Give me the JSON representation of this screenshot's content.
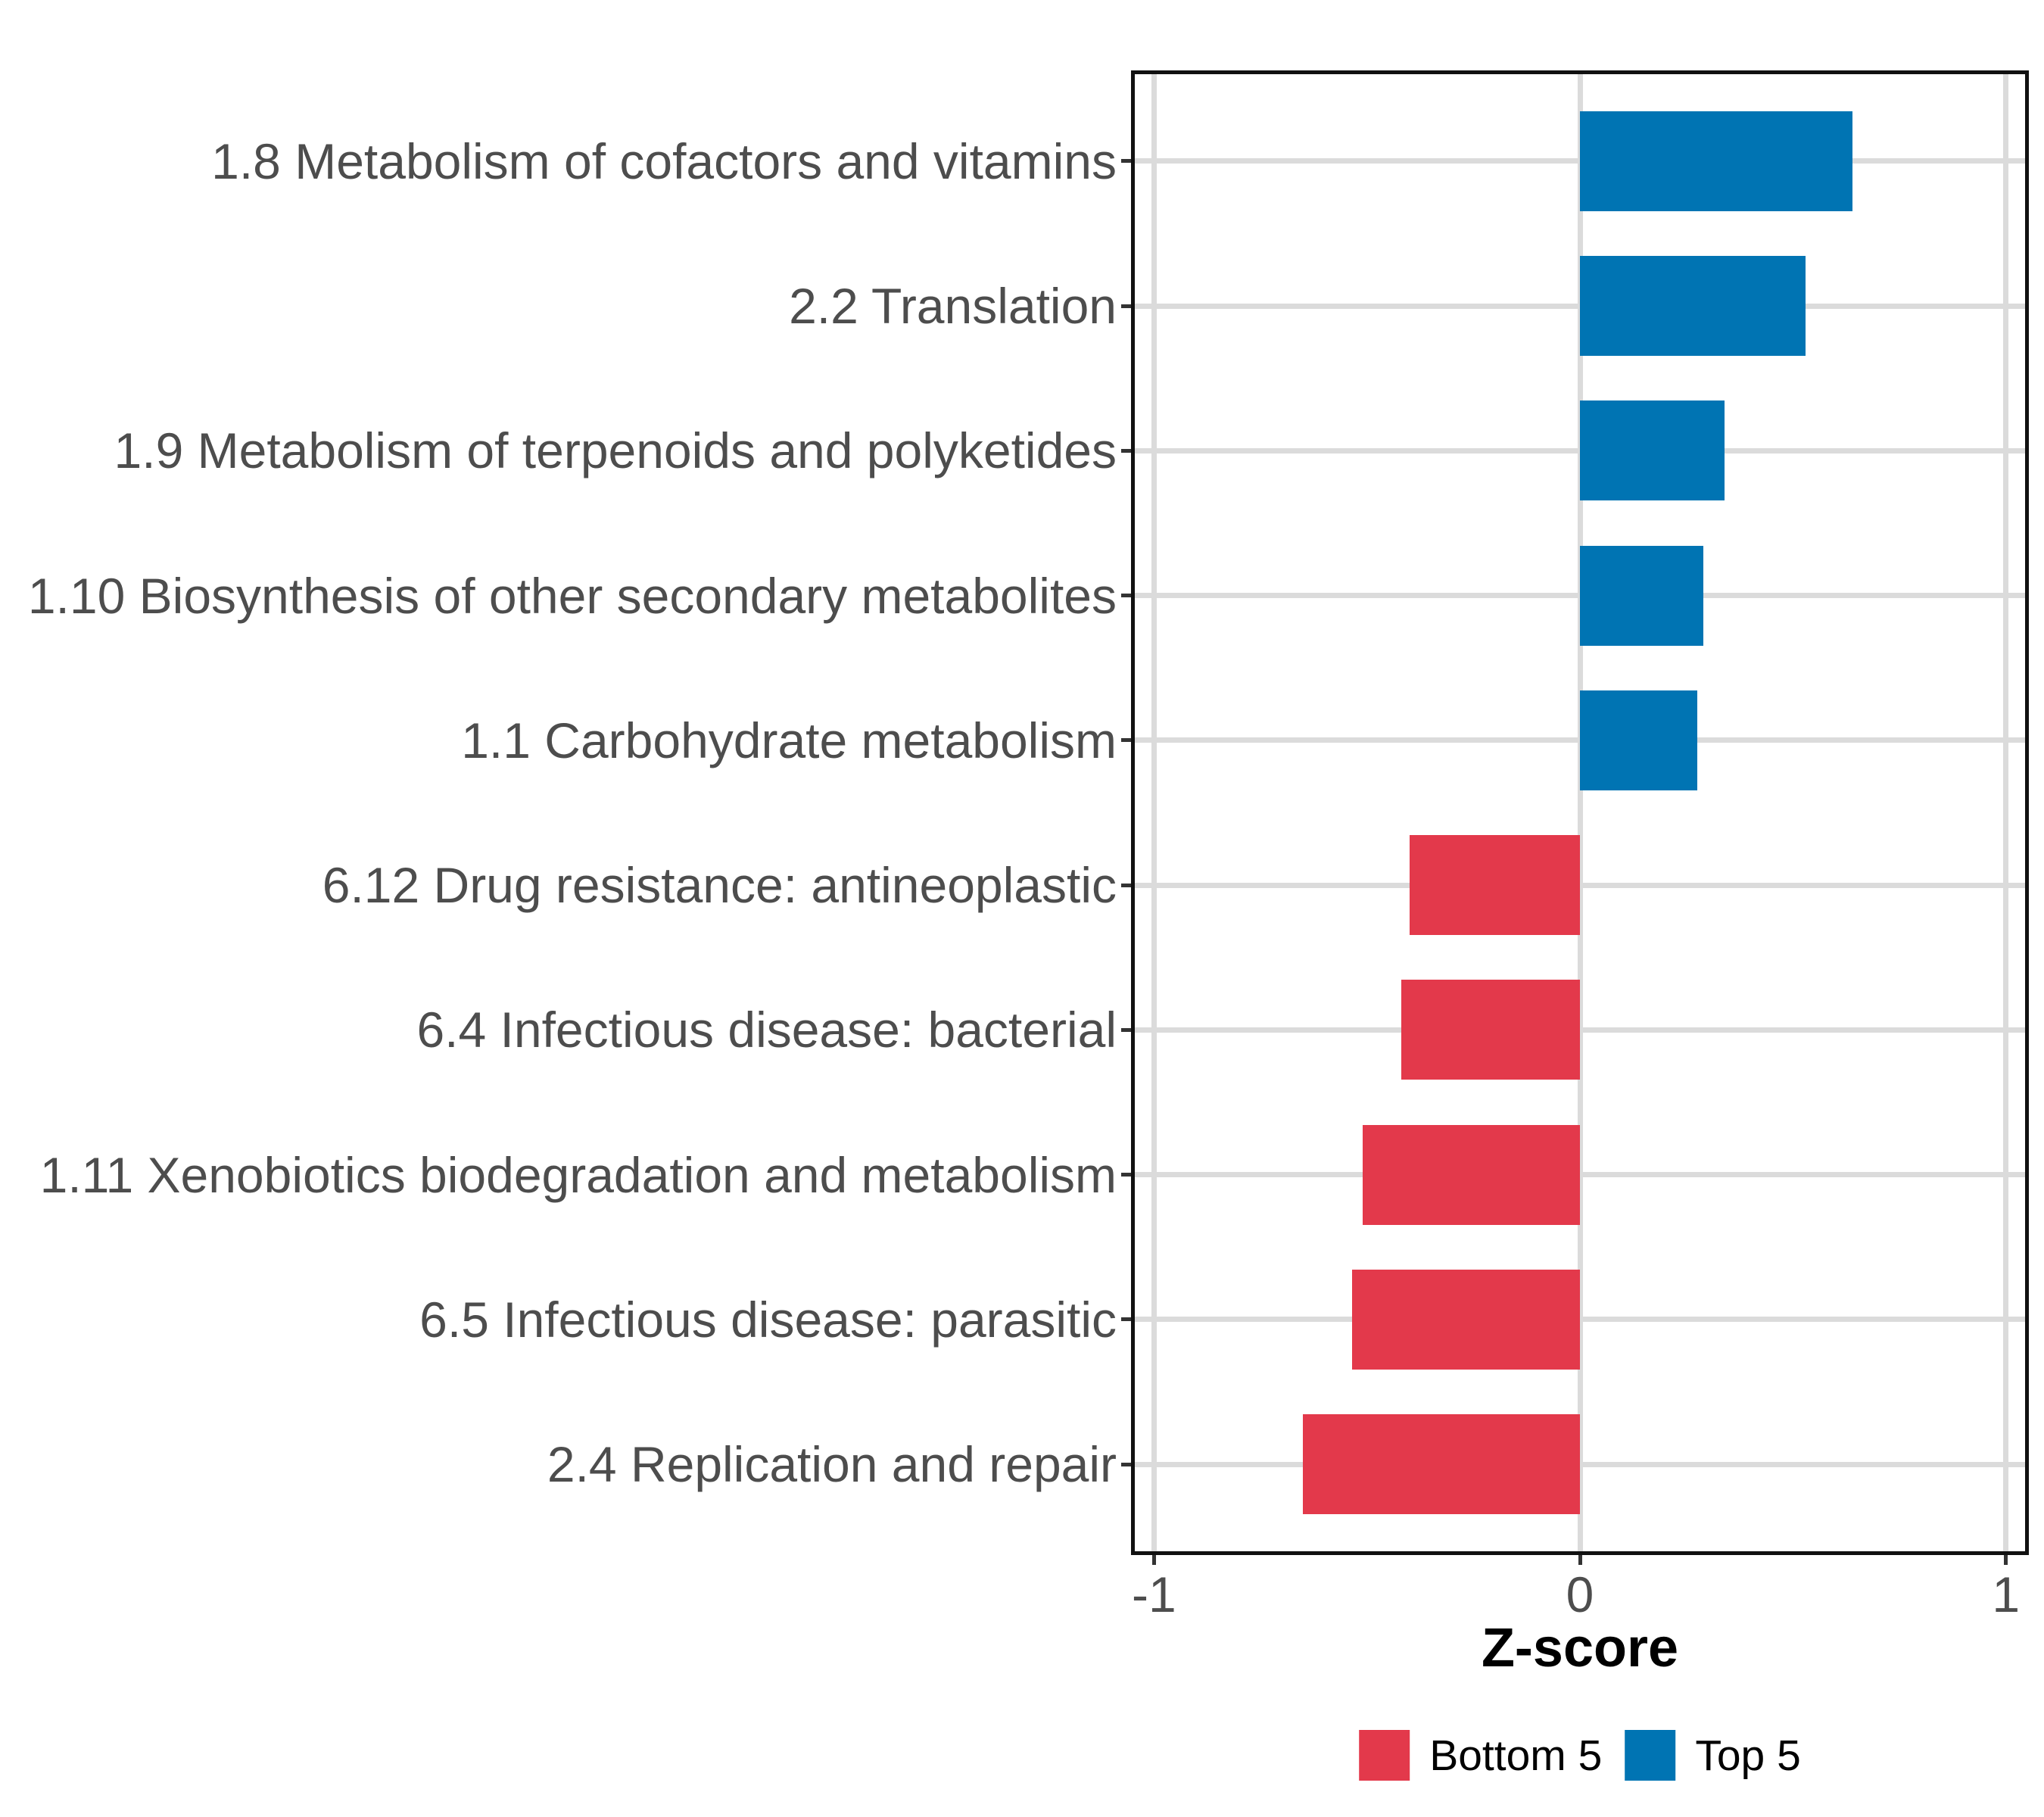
{
  "chart_data": {
    "type": "bar",
    "orientation": "horizontal",
    "title": "",
    "xlabel": "Z-score",
    "ylabel": "",
    "categories": [
      "1.8 Metabolism of cofactors and vitamins",
      "2.2 Translation",
      "1.9 Metabolism of terpenoids and polyketides",
      "1.10 Biosynthesis of other secondary metabolites",
      "1.1 Carbohydrate metabolism",
      "6.12 Drug resistance: antineoplastic",
      "6.4 Infectious disease: bacterial",
      "1.11 Xenobiotics biodegradation and metabolism",
      "6.5 Infectious disease: parasitic",
      "2.4 Replication and repair"
    ],
    "values": [
      0.64,
      0.53,
      0.34,
      0.29,
      0.275,
      -0.4,
      -0.42,
      -0.51,
      -0.535,
      -0.65
    ],
    "groups": [
      "top5",
      "top5",
      "top5",
      "top5",
      "top5",
      "bottom5",
      "bottom5",
      "bottom5",
      "bottom5",
      "bottom5"
    ],
    "xlim": [
      -1.045,
      1.045
    ],
    "xticks": [
      {
        "value": -1,
        "label": "-1"
      },
      {
        "value": 0,
        "label": "0"
      },
      {
        "value": 1,
        "label": "1"
      }
    ],
    "grid": "major-only",
    "legend_position": "bottom",
    "legend": {
      "entries": [
        {
          "group": "bottom5",
          "label": "Bottom 5",
          "color": "#E3394B"
        },
        {
          "group": "top5",
          "label": "Top 5",
          "color": "#0074B3"
        }
      ]
    },
    "colors": {
      "top5": "#0074B3",
      "bottom5": "#E3394B",
      "gridline": "#DBDBDB",
      "axis_text": "#4D4D4D",
      "tick_mark": "#333333",
      "panel_border": "#111111",
      "axis_title": "#000000",
      "legend_text": "#000000",
      "background": "#FFFFFF"
    }
  }
}
